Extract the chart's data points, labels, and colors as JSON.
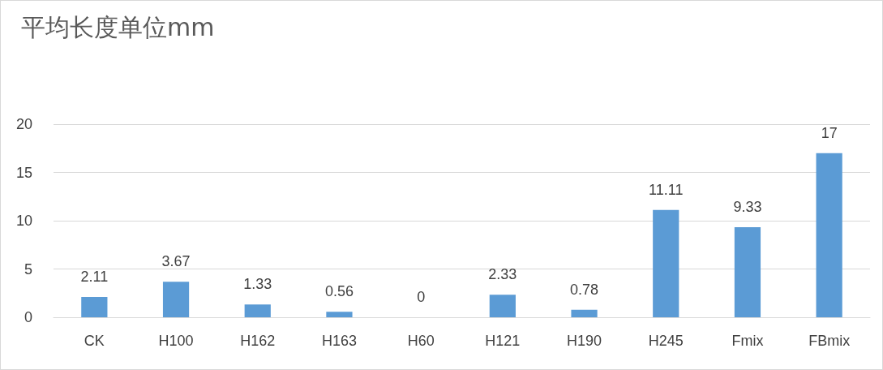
{
  "chart_data": {
    "type": "bar",
    "title": "平均长度单位mm",
    "categories": [
      "CK",
      "H100",
      "H162",
      "H163",
      "H60",
      "H121",
      "H190",
      "H245",
      "Fmix",
      "FBmix"
    ],
    "values": [
      2.11,
      3.67,
      1.33,
      0.56,
      0,
      2.33,
      0.78,
      11.11,
      9.33,
      17
    ],
    "color": "#5b9bd5",
    "ylim": [
      0,
      20
    ],
    "yticks": [
      0,
      5,
      10,
      15,
      20
    ],
    "grid": "y",
    "data_labels": true
  }
}
